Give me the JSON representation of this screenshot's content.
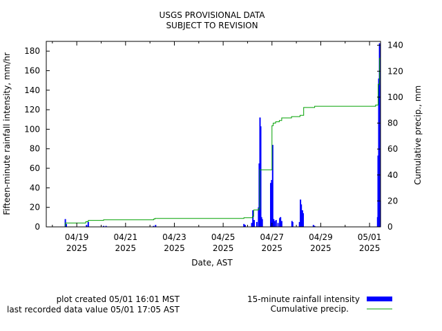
{
  "chart_data": {
    "type": "bar",
    "title": [
      "USGS PROVISIONAL DATA",
      "SUBJECT TO REVISION"
    ],
    "xlabel": "Date, AST",
    "ylabel": "Fifteen-minute rainfall intensity, mm/hr",
    "y2label": "Cumulative precip., mm",
    "xlim": [
      0,
      13.7
    ],
    "ylim": [
      0,
      190
    ],
    "y2lim": [
      0,
      143
    ],
    "yticks": [
      0,
      20,
      40,
      60,
      80,
      100,
      120,
      140,
      160,
      180
    ],
    "y2ticks": [
      0,
      20,
      40,
      60,
      80,
      100,
      120,
      140
    ],
    "xticks": [
      {
        "x": 1.25,
        "label": "04/19",
        "year": "2025"
      },
      {
        "x": 3.25,
        "label": "04/21",
        "year": "2025"
      },
      {
        "x": 5.25,
        "label": "04/23",
        "year": "2025"
      },
      {
        "x": 7.25,
        "label": "04/25",
        "year": "2025"
      },
      {
        "x": 9.25,
        "label": "04/27",
        "year": "2025"
      },
      {
        "x": 11.25,
        "label": "04/29",
        "year": "2025"
      },
      {
        "x": 13.25,
        "label": "05/01",
        "year": "2025"
      }
    ],
    "grid": false,
    "legend_placement": "bottom-right",
    "series": [
      {
        "name": "15-minute rainfall intensity",
        "kind": "bar",
        "color": "#0000ff",
        "points": [
          [
            0.78,
            8
          ],
          [
            0.82,
            3
          ],
          [
            1.65,
            2
          ],
          [
            1.72,
            5
          ],
          [
            2.35,
            1
          ],
          [
            2.45,
            1
          ],
          [
            4.4,
            1
          ],
          [
            4.48,
            2
          ],
          [
            8.1,
            3
          ],
          [
            8.15,
            2
          ],
          [
            8.42,
            4
          ],
          [
            8.47,
            17
          ],
          [
            8.52,
            7
          ],
          [
            8.63,
            5
          ],
          [
            8.7,
            20
          ],
          [
            8.73,
            65
          ],
          [
            8.76,
            112
          ],
          [
            8.79,
            103
          ],
          [
            8.82,
            10
          ],
          [
            8.85,
            8
          ],
          [
            9.2,
            45
          ],
          [
            9.24,
            48
          ],
          [
            9.28,
            84
          ],
          [
            9.32,
            8
          ],
          [
            9.36,
            6
          ],
          [
            9.42,
            7
          ],
          [
            9.5,
            4
          ],
          [
            9.57,
            9
          ],
          [
            9.6,
            10
          ],
          [
            9.65,
            6
          ],
          [
            10.07,
            6
          ],
          [
            10.1,
            5
          ],
          [
            10.38,
            5
          ],
          [
            10.42,
            28
          ],
          [
            10.45,
            23
          ],
          [
            10.5,
            17
          ],
          [
            10.53,
            14
          ],
          [
            10.95,
            2
          ],
          [
            11.0,
            1
          ],
          [
            13.58,
            10
          ],
          [
            13.6,
            73
          ],
          [
            13.63,
            152
          ],
          [
            13.66,
            188
          ],
          [
            13.69,
            27
          ]
        ]
      },
      {
        "name": "Cumulative precip.",
        "kind": "line",
        "color": "#00a000",
        "points": [
          [
            0.0,
            0
          ],
          [
            0.75,
            0
          ],
          [
            0.78,
            3
          ],
          [
            1.6,
            3
          ],
          [
            1.62,
            4
          ],
          [
            1.68,
            4
          ],
          [
            1.72,
            5
          ],
          [
            2.3,
            5
          ],
          [
            2.35,
            5.5
          ],
          [
            4.4,
            6
          ],
          [
            4.45,
            6.5
          ],
          [
            8.1,
            7
          ],
          [
            8.45,
            8
          ],
          [
            8.5,
            13
          ],
          [
            8.7,
            14
          ],
          [
            8.75,
            44
          ],
          [
            9.15,
            44
          ],
          [
            9.25,
            78
          ],
          [
            9.3,
            80
          ],
          [
            9.4,
            81
          ],
          [
            9.55,
            82
          ],
          [
            9.65,
            84
          ],
          [
            10.05,
            85
          ],
          [
            10.4,
            86
          ],
          [
            10.55,
            92
          ],
          [
            11.0,
            93
          ],
          [
            13.5,
            94
          ],
          [
            13.6,
            110
          ],
          [
            13.66,
            130
          ],
          [
            13.7,
            142
          ]
        ]
      }
    ],
    "legend": [
      {
        "label": "15-minute rainfall intensity",
        "kind": "bar",
        "color": "#0000ff"
      },
      {
        "label": "Cumulative precip.",
        "kind": "line",
        "color": "#00a000"
      }
    ],
    "footnotes": [
      "plot created 05/01 16:01 MST",
      "last recorded data value 05/01 17:05 AST"
    ]
  }
}
